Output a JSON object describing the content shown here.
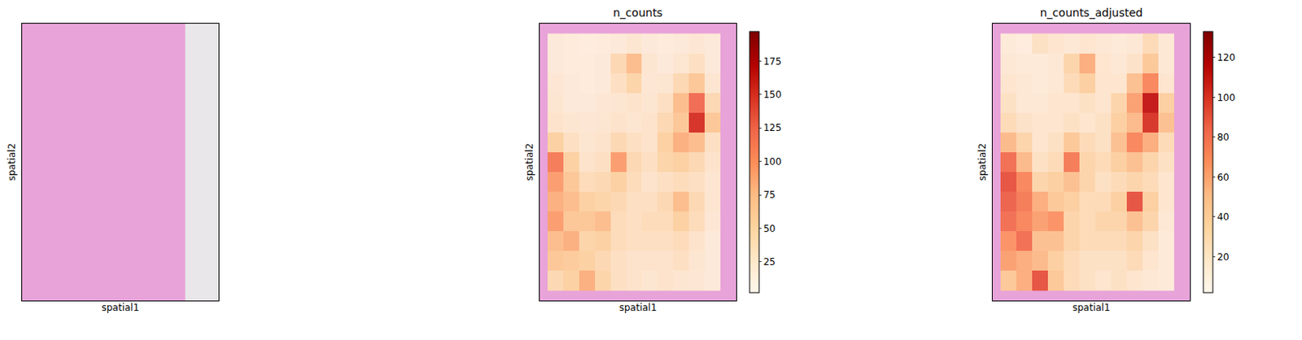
{
  "chart_data": [
    {
      "type": "image",
      "x_label": "spatial1",
      "y_label": "spatial2",
      "xlim": [
        0,
        250
      ],
      "ylim": [
        350,
        0
      ],
      "tick_labels": false
    },
    {
      "type": "heatmap",
      "title": "n_counts",
      "x_label": "spatial1",
      "y_label": "spatial2",
      "xlim": [
        0,
        250
      ],
      "ylim": [
        350,
        0
      ],
      "tick_labels": false,
      "x": [
        20,
        40,
        60,
        80,
        100,
        120,
        140,
        160,
        180,
        200,
        220
      ],
      "y": [
        25,
        50,
        75,
        100,
        125,
        150,
        175,
        200,
        225,
        250,
        275,
        300,
        325
      ],
      "cells": [
        [
          15,
          12,
          10,
          12,
          15,
          20,
          15,
          12,
          15,
          18,
          15
        ],
        [
          15,
          12,
          12,
          15,
          40,
          70,
          20,
          15,
          20,
          30,
          15
        ],
        [
          18,
          15,
          12,
          15,
          30,
          45,
          18,
          20,
          40,
          60,
          20
        ],
        [
          20,
          15,
          15,
          18,
          20,
          25,
          20,
          30,
          70,
          120,
          40
        ],
        [
          25,
          20,
          18,
          20,
          25,
          20,
          25,
          40,
          60,
          150,
          60
        ],
        [
          50,
          30,
          20,
          25,
          40,
          30,
          25,
          50,
          80,
          70,
          30
        ],
        [
          110,
          50,
          25,
          30,
          90,
          40,
          30,
          45,
          50,
          40,
          25
        ],
        [
          90,
          60,
          35,
          40,
          50,
          35,
          25,
          30,
          35,
          30,
          20
        ],
        [
          80,
          70,
          50,
          45,
          40,
          30,
          30,
          40,
          70,
          40,
          20
        ],
        [
          90,
          60,
          60,
          70,
          35,
          30,
          35,
          35,
          50,
          35,
          18
        ],
        [
          70,
          80,
          45,
          50,
          35,
          30,
          30,
          30,
          35,
          25,
          15
        ],
        [
          60,
          55,
          50,
          40,
          30,
          25,
          25,
          25,
          30,
          20,
          15
        ],
        [
          40,
          50,
          80,
          45,
          30,
          25,
          20,
          25,
          20,
          18,
          15
        ]
      ],
      "colorbar_range": [
        2,
        197
      ],
      "colorbar_ticks": [
        25,
        50,
        75,
        100,
        125,
        150,
        175
      ]
    },
    {
      "type": "heatmap",
      "title": "n_counts_adjusted",
      "x_label": "spatial1",
      "y_label": "spatial2",
      "xlim": [
        0,
        250
      ],
      "ylim": [
        350,
        0
      ],
      "tick_labels": false,
      "x": [
        20,
        40,
        60,
        80,
        100,
        120,
        140,
        160,
        180,
        200,
        220
      ],
      "y": [
        25,
        50,
        75,
        100,
        125,
        150,
        175,
        200,
        225,
        250,
        275,
        300,
        325
      ],
      "cells": [
        [
          10,
          8,
          20,
          15,
          12,
          15,
          12,
          10,
          12,
          25,
          12
        ],
        [
          12,
          10,
          10,
          12,
          30,
          55,
          15,
          12,
          18,
          40,
          12
        ],
        [
          15,
          12,
          10,
          12,
          25,
          35,
          15,
          15,
          45,
          70,
          15
        ],
        [
          20,
          12,
          12,
          15,
          15,
          20,
          15,
          30,
          60,
          110,
          35
        ],
        [
          25,
          18,
          15,
          15,
          20,
          15,
          20,
          35,
          50,
          100,
          45
        ],
        [
          50,
          30,
          15,
          20,
          40,
          25,
          20,
          45,
          70,
          55,
          25
        ],
        [
          80,
          50,
          20,
          25,
          75,
          30,
          25,
          35,
          45,
          30,
          20
        ],
        [
          90,
          70,
          30,
          35,
          45,
          30,
          20,
          25,
          30,
          25,
          15
        ],
        [
          85,
          75,
          55,
          40,
          35,
          25,
          25,
          35,
          90,
          35,
          15
        ],
        [
          80,
          70,
          60,
          65,
          30,
          25,
          30,
          30,
          45,
          30,
          12
        ],
        [
          65,
          80,
          45,
          45,
          30,
          25,
          25,
          25,
          30,
          20,
          10
        ],
        [
          60,
          55,
          50,
          35,
          25,
          20,
          20,
          20,
          25,
          15,
          10
        ],
        [
          40,
          55,
          90,
          40,
          25,
          20,
          15,
          20,
          15,
          12,
          10
        ]
      ],
      "colorbar_range": [
        2,
        133
      ],
      "colorbar_ticks": [
        20,
        40,
        60,
        80,
        100,
        120
      ]
    }
  ]
}
